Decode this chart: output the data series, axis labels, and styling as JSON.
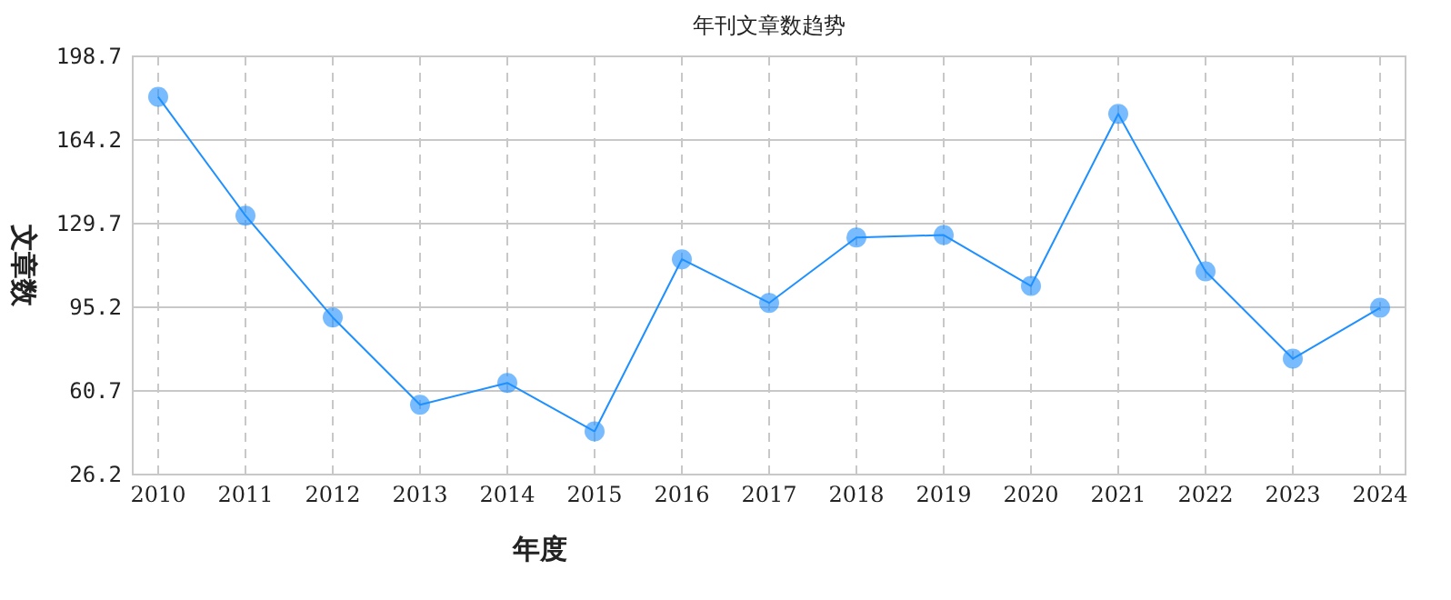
{
  "chart_data": {
    "type": "line",
    "title": "年刊文章数趋势",
    "xlabel": "年度",
    "ylabel": "文章数",
    "categories": [
      "2010",
      "2011",
      "2012",
      "2013",
      "2014",
      "2015",
      "2016",
      "2017",
      "2018",
      "2019",
      "2020",
      "2021",
      "2022",
      "2023",
      "2024"
    ],
    "series": [
      {
        "color": "#1e90ff",
        "values": [
          182,
          133,
          91,
          55,
          64,
          44,
          115,
          97,
          124,
          125,
          104,
          175,
          110,
          74,
          95
        ]
      }
    ],
    "ylim": [
      26.2,
      198.7
    ],
    "yticks": [
      26.2,
      60.7,
      95.2,
      129.7,
      164.2,
      198.7
    ],
    "grid": true,
    "marker": "circle",
    "line_style": "solid"
  }
}
